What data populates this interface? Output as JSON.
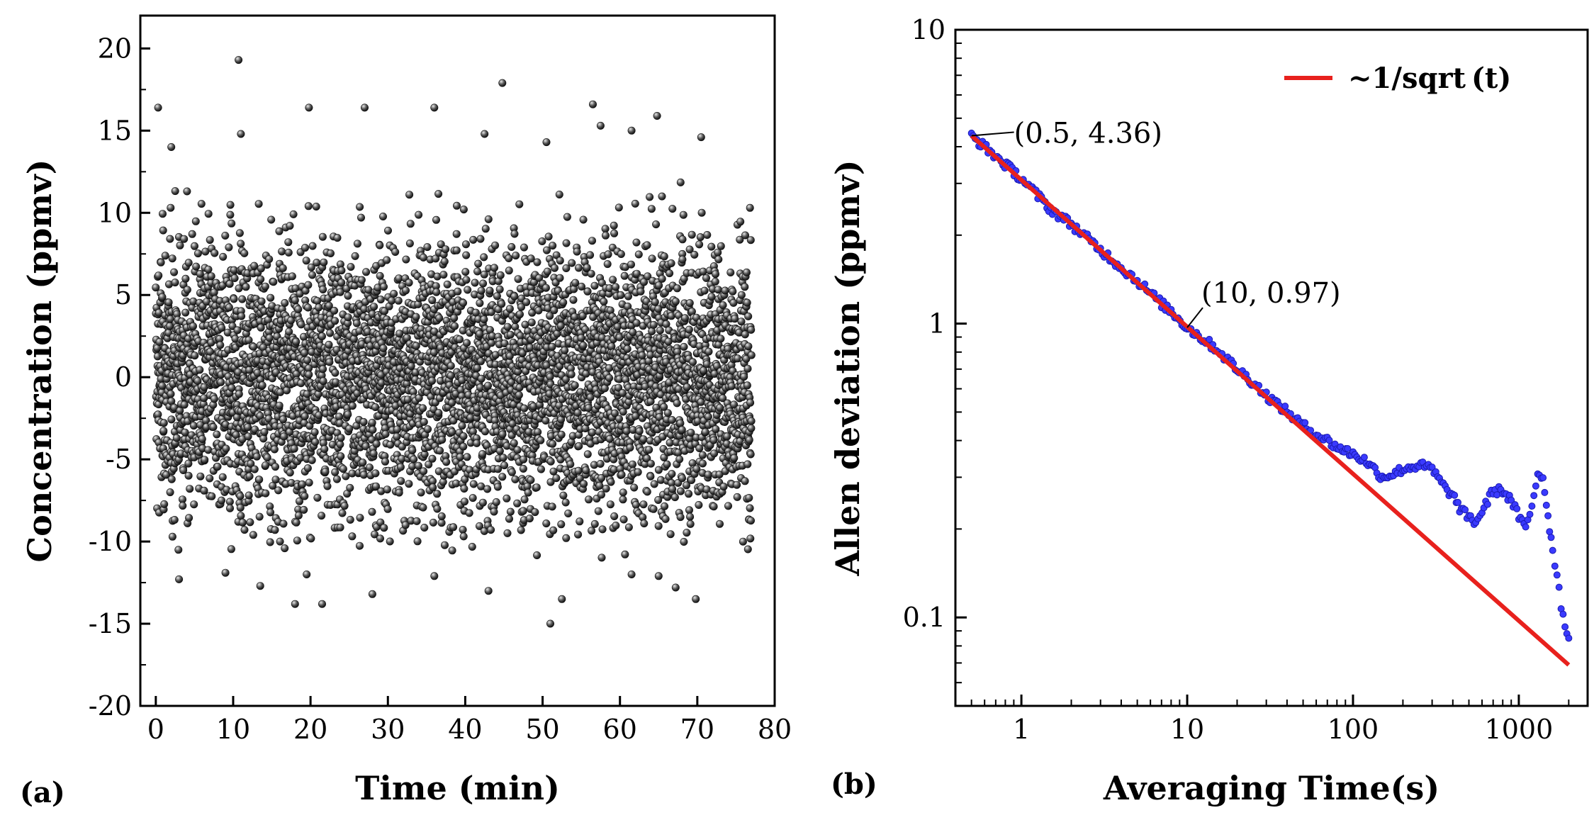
{
  "chart_data": [
    {
      "panel_label": "(a)",
      "type": "scatter",
      "xlabel": "Time (min)",
      "ylabel": "Concentration (ppmv)",
      "xlim": [
        -2,
        80
      ],
      "ylim": [
        -20,
        22
      ],
      "xticks": [
        0,
        10,
        20,
        30,
        40,
        50,
        60,
        70,
        80
      ],
      "yticks": [
        -20,
        -15,
        -10,
        -5,
        0,
        5,
        10,
        15,
        20
      ],
      "marker_color": "#3a3a3a",
      "series": [
        {
          "name": "Concentration",
          "x_range": [
            0,
            77
          ],
          "n_points": 4600,
          "approx_center": 0,
          "approx_core_band": [
            -6,
            8
          ],
          "outliers": [
            {
              "x": 0.3,
              "y": 16.4
            },
            {
              "x": 10.7,
              "y": 19.3
            },
            {
              "x": 19.8,
              "y": 16.4
            },
            {
              "x": 27.0,
              "y": 16.4
            },
            {
              "x": 36.0,
              "y": 16.4
            },
            {
              "x": 44.8,
              "y": 17.9
            },
            {
              "x": 56.5,
              "y": 16.6
            },
            {
              "x": 64.8,
              "y": 15.9
            },
            {
              "x": 11.0,
              "y": 14.8
            },
            {
              "x": 42.5,
              "y": 14.8
            },
            {
              "x": 50.5,
              "y": 14.3
            },
            {
              "x": 61.5,
              "y": 15.0
            },
            {
              "x": 70.5,
              "y": 14.6
            },
            {
              "x": 2.0,
              "y": 14.0
            },
            {
              "x": 57.5,
              "y": 15.3
            },
            {
              "x": 51.0,
              "y": -15.0
            },
            {
              "x": 69.8,
              "y": -13.5
            },
            {
              "x": 18.0,
              "y": -13.8
            },
            {
              "x": 21.5,
              "y": -13.8
            },
            {
              "x": 28.0,
              "y": -13.2
            },
            {
              "x": 43.0,
              "y": -13.0
            },
            {
              "x": 52.5,
              "y": -13.5
            },
            {
              "x": 3.0,
              "y": -12.3
            },
            {
              "x": 13.5,
              "y": -12.7
            },
            {
              "x": 36.0,
              "y": -12.1
            },
            {
              "x": 65.0,
              "y": -12.1
            },
            {
              "x": 67.2,
              "y": -12.8
            },
            {
              "x": 9.0,
              "y": -11.9
            },
            {
              "x": 19.5,
              "y": -12.0
            },
            {
              "x": 61.5,
              "y": -12.0
            }
          ]
        }
      ]
    },
    {
      "panel_label": "(b)",
      "type": "scatter",
      "xscale": "log",
      "yscale": "log",
      "xlabel": "Averaging Time(s)",
      "ylabel": "Allen deviation (ppmv)",
      "xlim": [
        0.4,
        2600
      ],
      "ylim": [
        0.05,
        10
      ],
      "xticks": [
        1,
        10,
        100,
        1000
      ],
      "xtick_labels": [
        "1",
        "10",
        "100",
        "1000"
      ],
      "yticks": [
        0.1,
        1,
        10
      ],
      "ytick_labels": [
        "0.1",
        "1",
        "10"
      ],
      "series": [
        {
          "name": "Allan deviation",
          "color": "#2a2aee",
          "points": [
            [
              0.5,
              4.36
            ],
            [
              1.0,
              3.12
            ],
            [
              1.5,
              2.45
            ],
            [
              2.0,
              2.18
            ],
            [
              2.5,
              1.95
            ],
            [
              3.0,
              1.78
            ],
            [
              3.5,
              1.66
            ],
            [
              4.0,
              1.55
            ],
            [
              5.0,
              1.4
            ],
            [
              6.0,
              1.27
            ],
            [
              7.0,
              1.17
            ],
            [
              8.0,
              1.1
            ],
            [
              10.0,
              0.97
            ],
            [
              12.0,
              0.9
            ],
            [
              15.0,
              0.82
            ],
            [
              20.0,
              0.7
            ],
            [
              25.0,
              0.63
            ],
            [
              30.0,
              0.57
            ],
            [
              40.0,
              0.5
            ],
            [
              50.0,
              0.45
            ],
            [
              60.0,
              0.42
            ],
            [
              70.0,
              0.4
            ],
            [
              80.0,
              0.38
            ],
            [
              100.0,
              0.36
            ],
            [
              120.0,
              0.34
            ],
            [
              150.0,
              0.3
            ],
            [
              180.0,
              0.31
            ],
            [
              200.0,
              0.32
            ],
            [
              250.0,
              0.33
            ],
            [
              300.0,
              0.32
            ],
            [
              350.0,
              0.28
            ],
            [
              400.0,
              0.26
            ],
            [
              450.0,
              0.23
            ],
            [
              500.0,
              0.22
            ],
            [
              550.0,
              0.21
            ],
            [
              600.0,
              0.23
            ],
            [
              700.0,
              0.27
            ],
            [
              800.0,
              0.27
            ],
            [
              900.0,
              0.25
            ],
            [
              1000.0,
              0.22
            ],
            [
              1100.0,
              0.2
            ],
            [
              1200.0,
              0.24
            ],
            [
              1300.0,
              0.31
            ],
            [
              1400.0,
              0.3
            ],
            [
              1500.0,
              0.22
            ],
            [
              1600.0,
              0.17
            ],
            [
              1700.0,
              0.14
            ],
            [
              1800.0,
              0.11
            ],
            [
              1900.0,
              0.095
            ],
            [
              2000.0,
              0.085
            ]
          ]
        },
        {
          "name": "~1/sqrt(t)",
          "color": "#e8211d",
          "type": "line",
          "x": [
            0.5,
            2000.0
          ],
          "y": [
            4.36,
            0.0689
          ]
        }
      ],
      "legend": {
        "label": "~1/sqrt (t)",
        "position": "top-right"
      },
      "annotations": [
        {
          "text": "(0.5, 4.36)",
          "x": 0.5,
          "y": 4.36
        },
        {
          "text": "(10, 0.97)",
          "x": 10,
          "y": 0.97
        }
      ]
    }
  ]
}
